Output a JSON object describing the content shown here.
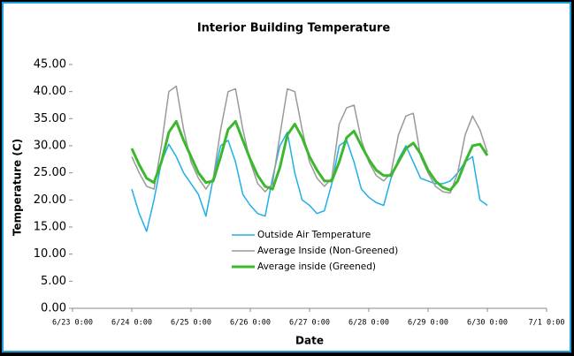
{
  "chart_data": {
    "type": "line",
    "title": "Interior Building Temperature",
    "x_label": "Date",
    "y_label": "Temperature (C)",
    "x": [
      "6/24 0:00",
      "6/24 3:00",
      "6/24 6:00",
      "6/24 9:00",
      "6/24 12:00",
      "6/24 15:00",
      "6/24 18:00",
      "6/24 21:00",
      "6/25 0:00",
      "6/25 3:00",
      "6/25 6:00",
      "6/25 9:00",
      "6/25 12:00",
      "6/25 15:00",
      "6/25 18:00",
      "6/25 21:00",
      "6/26 0:00",
      "6/26 3:00",
      "6/26 6:00",
      "6/26 9:00",
      "6/26 12:00",
      "6/26 15:00",
      "6/26 18:00",
      "6/26 21:00",
      "6/27 0:00",
      "6/27 3:00",
      "6/27 6:00",
      "6/27 9:00",
      "6/27 12:00",
      "6/27 15:00",
      "6/27 18:00",
      "6/27 21:00",
      "6/28 0:00",
      "6/28 3:00",
      "6/28 6:00",
      "6/28 9:00",
      "6/28 12:00",
      "6/28 15:00",
      "6/28 18:00",
      "6/28 21:00",
      "6/29 0:00",
      "6/29 3:00",
      "6/29 6:00",
      "6/29 9:00",
      "6/29 12:00",
      "6/29 15:00",
      "6/29 18:00",
      "6/29 21:00",
      "6/30 0:00"
    ],
    "series": [
      {
        "name": "Outside Air Temperature",
        "color": "#1eb0e6",
        "width": 1.5,
        "values": [
          22,
          17.5,
          14.2,
          20,
          27,
          30.3,
          28,
          25,
          23,
          21,
          17,
          24,
          30,
          31,
          27,
          21,
          19,
          17.5,
          17,
          24,
          30,
          32.5,
          25,
          20,
          19,
          17.5,
          18,
          23,
          30,
          31,
          27,
          22,
          20.5,
          19.5,
          19,
          24,
          27.5,
          30,
          27,
          24,
          23.5,
          23,
          23,
          23.5,
          25,
          27,
          28,
          20,
          19
        ]
      },
      {
        "name": "Average Inside (Non-Greened)",
        "color": "#9a9a9a",
        "width": 1.5,
        "values": [
          28,
          25,
          22.5,
          22,
          30,
          40,
          41,
          33,
          27,
          24,
          22,
          24,
          33,
          40,
          40.5,
          33,
          27,
          23,
          21.5,
          23,
          32,
          40.5,
          40,
          33,
          27,
          24,
          22.5,
          24,
          34,
          37,
          37.5,
          31,
          27,
          24.5,
          23.5,
          25,
          32,
          35.5,
          36,
          28,
          25,
          22.5,
          21.5,
          21.3,
          25,
          32,
          35.5,
          33,
          28.8
        ]
      },
      {
        "name": "Average inside (Greened)",
        "color": "#3cb82e",
        "width": 3,
        "values": [
          29.5,
          26.5,
          24,
          23.2,
          27,
          32.5,
          34.5,
          31,
          28,
          25,
          23.2,
          23.5,
          28,
          33,
          34.5,
          31,
          27.5,
          24.5,
          22.5,
          22,
          26,
          32,
          34,
          31.5,
          28,
          25.5,
          23.5,
          23.5,
          27,
          31.5,
          32.7,
          30,
          27.5,
          25.5,
          24.5,
          24.5,
          27,
          29.5,
          30.5,
          28.5,
          25.5,
          23.5,
          22.3,
          21.8,
          23.5,
          27,
          30,
          30.3,
          28.2
        ]
      }
    ],
    "xlim": [
      "6/23 0:00",
      "7/1 0:00"
    ],
    "xticks": [
      "6/23 0:00",
      "6/24 0:00",
      "6/25 0:00",
      "6/26 0:00",
      "6/27 0:00",
      "6/28 0:00",
      "6/29 0:00",
      "6/30 0:00",
      "7/1 0:00"
    ],
    "ylim": [
      0,
      45
    ],
    "yticks": [
      {
        "value": 0,
        "label": "0.00"
      },
      {
        "value": 5,
        "label": "5.00"
      },
      {
        "value": 10,
        "label": "10.00"
      },
      {
        "value": 15,
        "label": "15.00"
      },
      {
        "value": 20,
        "label": "20.00"
      },
      {
        "value": 25,
        "label": "25.00"
      },
      {
        "value": 30,
        "label": "30.00"
      },
      {
        "value": 35,
        "label": "35.00"
      },
      {
        "value": 40,
        "label": "40.00"
      },
      {
        "value": 45,
        "label": "45.00"
      }
    ],
    "grid": false,
    "legend": "center"
  }
}
